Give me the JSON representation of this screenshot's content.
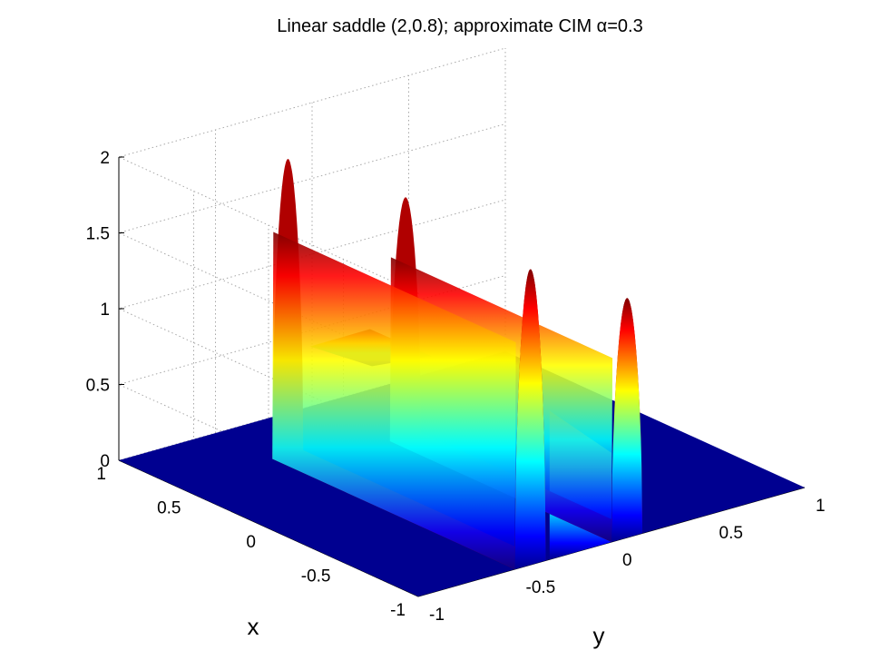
{
  "figure": {
    "title": "Linear saddle (2,0.8); approximate CIM α=0.3"
  },
  "chart_data": {
    "type": "surface",
    "title": "Linear saddle (2,0.8); approximate CIM α=0.3",
    "xlabel": "x",
    "ylabel": "y",
    "zlabel": "",
    "xlim": [
      -1,
      1
    ],
    "ylim": [
      -1,
      1
    ],
    "zlim": [
      0,
      2
    ],
    "xticks": [
      "-1",
      "-0.5",
      "0",
      "0.5",
      "1"
    ],
    "yticks": [
      "-1",
      "-0.5",
      "0",
      "0.5",
      "1"
    ],
    "zticks": [
      "0",
      "0.5",
      "1",
      "1.5",
      "2"
    ],
    "grid": true,
    "colormap": "jet",
    "colormap_colors": [
      "#00008f",
      "#0000ff",
      "#00ffff",
      "#ffff00",
      "#ff0000",
      "#800000"
    ],
    "background_color": "#000090",
    "ridges": [
      {
        "x_from": -1.0,
        "x_to": 0.62,
        "y_center": -0.42,
        "half_width": 0.08,
        "peak": 1.95,
        "inner_shoulder": 1.02
      },
      {
        "x_from": -1.0,
        "x_to": 0.48,
        "y_center": 0.08,
        "half_width": 0.08,
        "peak": 1.58,
        "inner_shoulder": 0.68
      }
    ],
    "valley": {
      "x_range": [
        0.2,
        0.6
      ],
      "y_range": [
        -0.32,
        0.0
      ],
      "min": 0.0,
      "max": 0.98
    }
  }
}
